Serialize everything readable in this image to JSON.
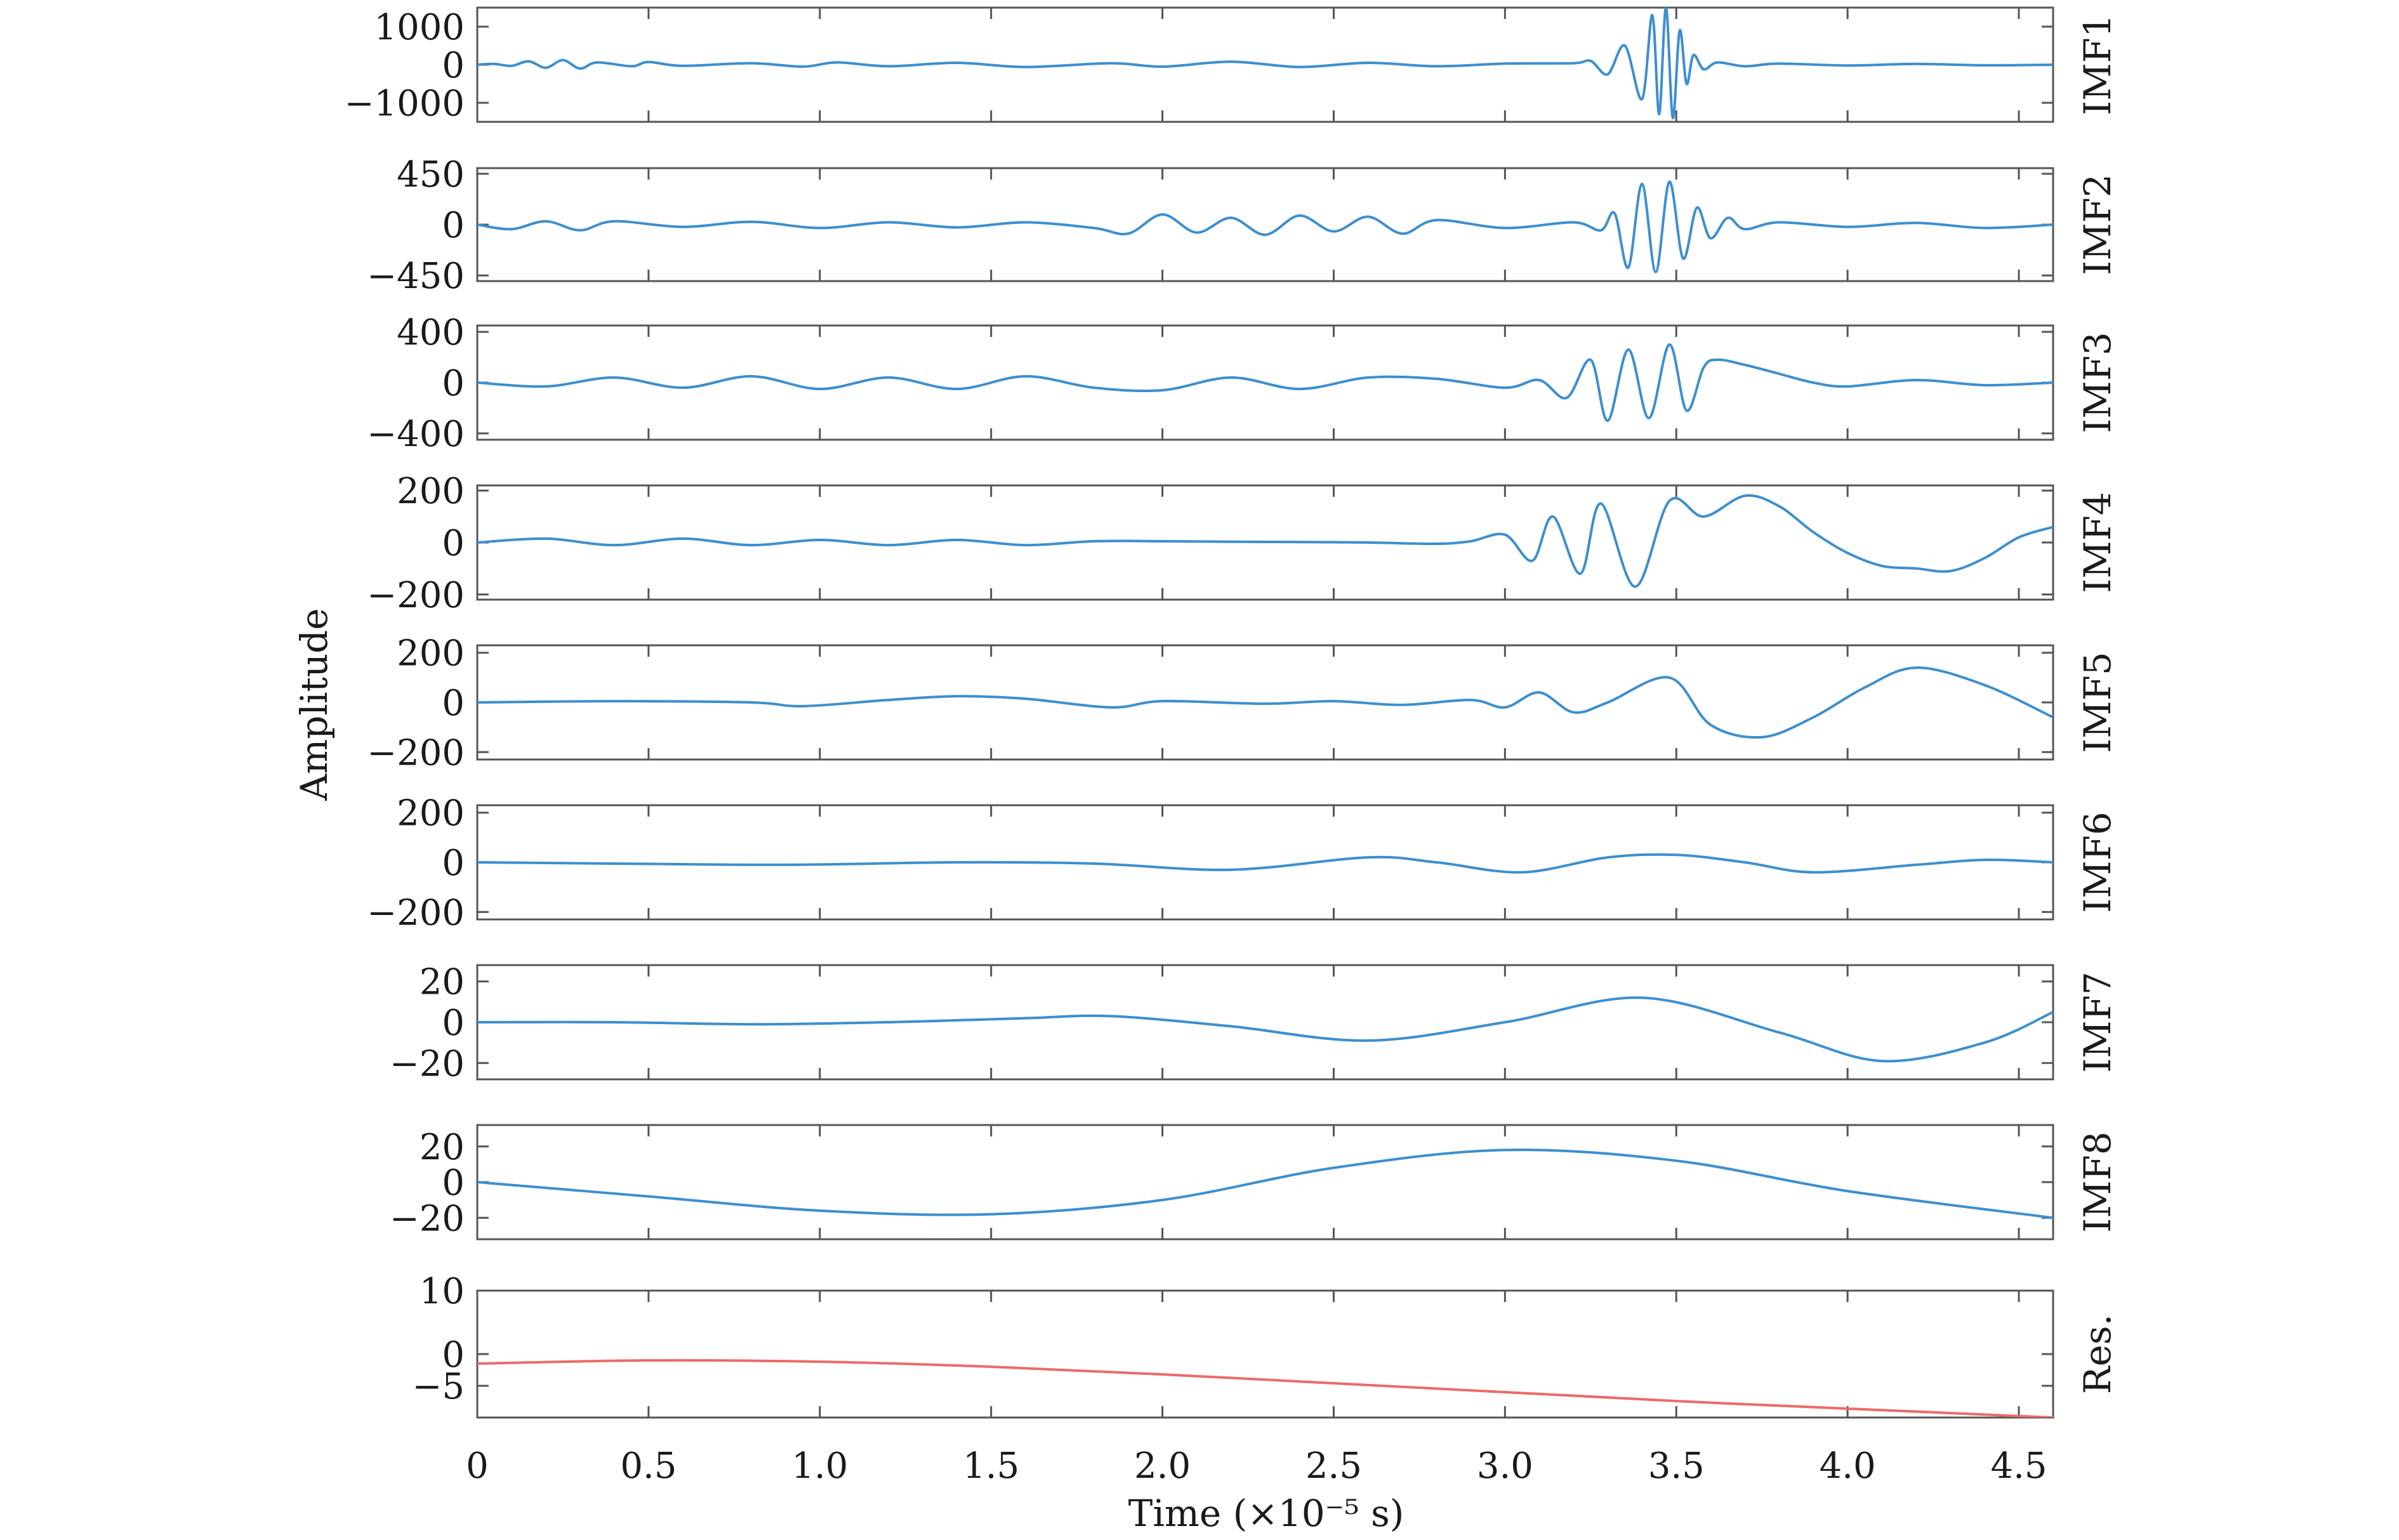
{
  "chart_data": [
    {
      "type": "line",
      "panel_label": "IMF1",
      "yticks": [
        1000,
        0,
        -1000
      ],
      "ylim": [
        -1500,
        1500
      ],
      "color": "#3d8fce",
      "x": [
        0.0,
        0.05,
        0.1,
        0.15,
        0.2,
        0.25,
        0.3,
        0.35,
        0.45,
        0.5,
        0.6,
        0.8,
        0.95,
        1.05,
        1.2,
        1.4,
        1.6,
        1.85,
        2.0,
        2.2,
        2.4,
        2.6,
        2.8,
        3.0,
        3.2,
        3.25,
        3.3,
        3.35,
        3.4,
        3.43,
        3.45,
        3.47,
        3.49,
        3.51,
        3.53,
        3.55,
        3.58,
        3.62,
        3.7,
        3.8,
        4.0,
        4.2,
        4.4,
        4.6
      ],
      "values": [
        0,
        20,
        -30,
        90,
        -80,
        120,
        -100,
        60,
        -40,
        70,
        -30,
        40,
        -50,
        60,
        -40,
        50,
        -60,
        40,
        -50,
        80,
        -60,
        50,
        -40,
        30,
        40,
        100,
        -250,
        500,
        -900,
        1300,
        -1300,
        1500,
        -1400,
        900,
        -500,
        250,
        -120,
        60,
        -40,
        30,
        -20,
        20,
        -15,
        0
      ]
    },
    {
      "type": "line",
      "panel_label": "IMF2",
      "yticks": [
        450,
        0,
        -450
      ],
      "ylim": [
        -500,
        500
      ],
      "color": "#3d8fce",
      "x": [
        0.0,
        0.1,
        0.2,
        0.3,
        0.4,
        0.6,
        0.8,
        1.0,
        1.2,
        1.4,
        1.6,
        1.8,
        1.9,
        2.0,
        2.1,
        2.2,
        2.3,
        2.4,
        2.5,
        2.6,
        2.7,
        2.8,
        3.0,
        3.2,
        3.28,
        3.32,
        3.36,
        3.4,
        3.44,
        3.48,
        3.52,
        3.56,
        3.6,
        3.65,
        3.7,
        3.8,
        4.0,
        4.2,
        4.4,
        4.6
      ],
      "values": [
        0,
        -40,
        30,
        -50,
        30,
        -20,
        25,
        -30,
        20,
        -25,
        20,
        -30,
        -80,
        90,
        -70,
        60,
        -90,
        80,
        -60,
        70,
        -80,
        40,
        -30,
        20,
        -50,
        100,
        -380,
        360,
        -420,
        380,
        -300,
        150,
        -120,
        60,
        -40,
        20,
        -20,
        15,
        -30,
        0
      ]
    },
    {
      "type": "line",
      "panel_label": "IMF3",
      "yticks": [
        400,
        0,
        -400
      ],
      "ylim": [
        -450,
        450
      ],
      "color": "#3d8fce",
      "x": [
        0.0,
        0.2,
        0.4,
        0.6,
        0.8,
        1.0,
        1.2,
        1.4,
        1.6,
        1.8,
        2.0,
        2.2,
        2.4,
        2.6,
        2.8,
        3.0,
        3.1,
        3.18,
        3.25,
        3.3,
        3.36,
        3.42,
        3.48,
        3.53,
        3.58,
        3.62,
        3.7,
        3.8,
        3.9,
        4.0,
        4.2,
        4.4,
        4.6
      ],
      "values": [
        0,
        -30,
        40,
        -40,
        50,
        -50,
        40,
        -50,
        50,
        -40,
        -60,
        40,
        -50,
        40,
        30,
        -40,
        20,
        -120,
        180,
        -300,
        260,
        -280,
        300,
        -220,
        120,
        180,
        140,
        70,
        0,
        -30,
        20,
        -20,
        0
      ]
    },
    {
      "type": "line",
      "panel_label": "IMF4",
      "yticks": [
        200,
        0,
        -200
      ],
      "ylim": [
        -220,
        220
      ],
      "color": "#3d8fce",
      "x": [
        0.0,
        0.2,
        0.4,
        0.6,
        0.8,
        1.0,
        1.2,
        1.4,
        1.6,
        1.8,
        2.0,
        2.2,
        2.4,
        2.6,
        2.8,
        2.9,
        3.0,
        3.08,
        3.14,
        3.22,
        3.28,
        3.38,
        3.48,
        3.58,
        3.7,
        3.8,
        3.9,
        4.0,
        4.1,
        4.2,
        4.3,
        4.4,
        4.5,
        4.6
      ],
      "values": [
        0,
        15,
        -10,
        15,
        -10,
        10,
        -10,
        10,
        -10,
        5,
        5,
        3,
        2,
        0,
        -5,
        5,
        30,
        -70,
        100,
        -120,
        150,
        -170,
        160,
        100,
        180,
        140,
        40,
        -40,
        -90,
        -100,
        -110,
        -60,
        20,
        60
      ]
    },
    {
      "type": "line",
      "panel_label": "IMF5",
      "yticks": [
        200,
        0,
        -200
      ],
      "ylim": [
        -230,
        230
      ],
      "color": "#3d8fce",
      "x": [
        0.0,
        0.4,
        0.8,
        0.95,
        1.2,
        1.4,
        1.6,
        1.85,
        2.0,
        2.3,
        2.5,
        2.7,
        2.9,
        3.0,
        3.1,
        3.2,
        3.3,
        3.48,
        3.6,
        3.75,
        3.9,
        4.05,
        4.2,
        4.4,
        4.6
      ],
      "values": [
        0,
        5,
        0,
        -15,
        10,
        25,
        15,
        -20,
        5,
        -5,
        5,
        -10,
        10,
        -20,
        40,
        -40,
        0,
        100,
        -90,
        -140,
        -60,
        60,
        140,
        70,
        -60
      ]
    },
    {
      "type": "line",
      "panel_label": "IMF6",
      "yticks": [
        200,
        0,
        -200
      ],
      "ylim": [
        -230,
        230
      ],
      "color": "#3d8fce",
      "x": [
        0.0,
        0.4,
        0.9,
        1.4,
        1.8,
        2.2,
        2.6,
        2.8,
        3.05,
        3.3,
        3.5,
        3.7,
        3.9,
        4.2,
        4.4,
        4.6
      ],
      "values": [
        0,
        -5,
        -10,
        0,
        -5,
        -30,
        20,
        0,
        -40,
        20,
        30,
        0,
        -40,
        -10,
        10,
        0
      ]
    },
    {
      "type": "line",
      "panel_label": "IMF7",
      "yticks": [
        20,
        0,
        -20
      ],
      "ylim": [
        -28,
        28
      ],
      "color": "#3d8fce",
      "x": [
        0.0,
        0.4,
        0.8,
        1.2,
        1.6,
        1.85,
        2.2,
        2.6,
        3.0,
        3.4,
        3.8,
        4.1,
        4.4,
        4.6
      ],
      "values": [
        0,
        0,
        -1,
        0,
        2,
        3,
        -2,
        -9,
        0,
        12,
        -5,
        -19,
        -10,
        5
      ]
    },
    {
      "type": "line",
      "panel_label": "IMF8",
      "yticks": [
        20,
        0,
        -20
      ],
      "ylim": [
        -32,
        32
      ],
      "color": "#3d8fce",
      "x": [
        0.0,
        0.5,
        1.0,
        1.5,
        2.0,
        2.5,
        3.0,
        3.5,
        4.0,
        4.6
      ],
      "values": [
        0,
        -8,
        -16,
        -18,
        -10,
        8,
        18,
        12,
        -5,
        -20
      ]
    },
    {
      "type": "line",
      "panel_label": "Res.",
      "yticks": [
        10,
        0,
        -5
      ],
      "ylim": [
        -10,
        10
      ],
      "color": "#ec6a6a",
      "x": [
        0.0,
        0.5,
        1.0,
        1.5,
        2.0,
        2.5,
        3.0,
        3.5,
        4.0,
        4.6
      ],
      "values": [
        -1.5,
        -1.0,
        -1.2,
        -2.0,
        -3.2,
        -4.6,
        -6.0,
        -7.4,
        -8.6,
        -10.0
      ]
    }
  ],
  "xaxis": {
    "xlim": [
      0,
      4.6
    ],
    "ticks": [
      0,
      0.5,
      1.0,
      1.5,
      2.0,
      2.5,
      3.0,
      3.5,
      4.0,
      4.5
    ],
    "tick_labels": [
      "0",
      "0.5",
      "1.0",
      "1.5",
      "2.0",
      "2.5",
      "3.0",
      "3.5",
      "4.0",
      "4.5"
    ],
    "label": "Time (×10⁻⁵ s)"
  },
  "ylabel": "Amplitude"
}
